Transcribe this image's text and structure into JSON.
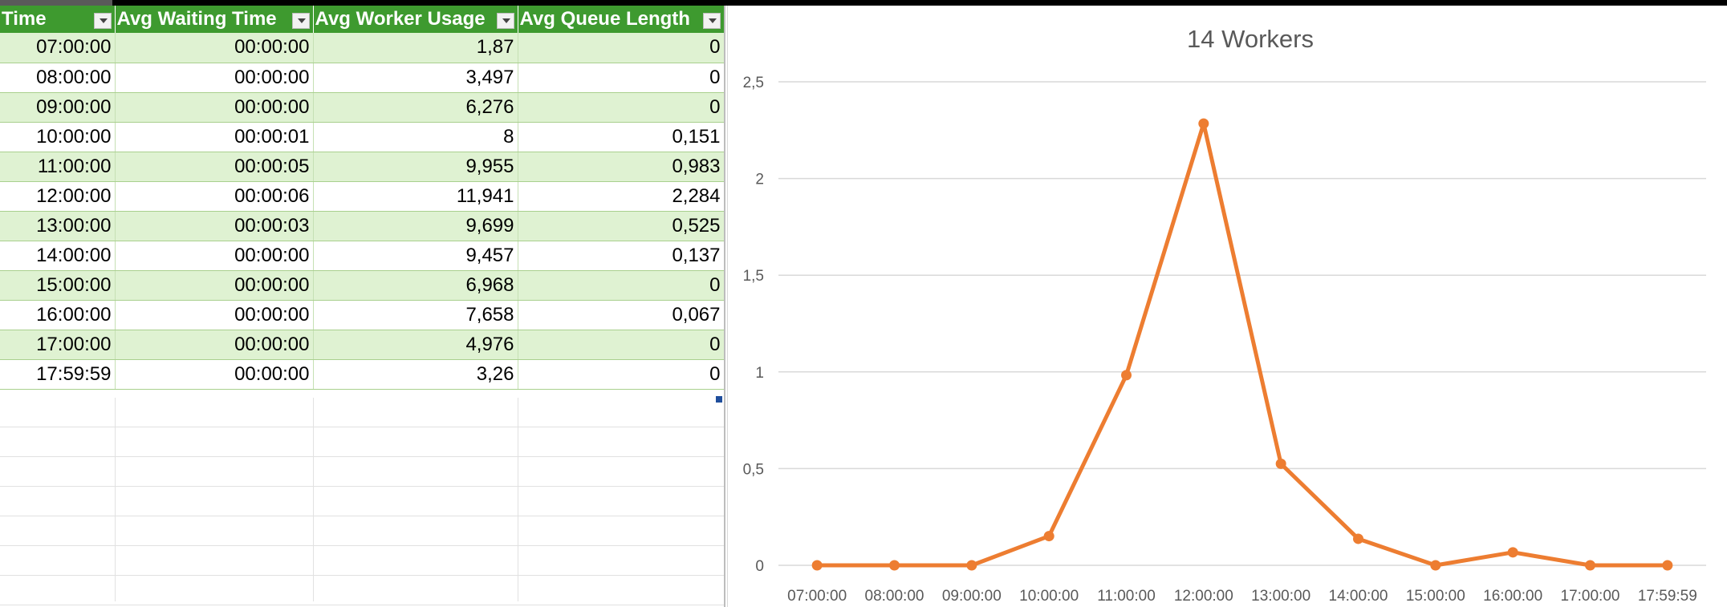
{
  "table": {
    "headers": [
      "Time",
      "Avg Waiting Time",
      "Avg Worker Usage",
      "Avg Queue Length"
    ],
    "rows": [
      [
        "07:00:00",
        "00:00:00",
        "1,87",
        "0"
      ],
      [
        "08:00:00",
        "00:00:00",
        "3,497",
        "0"
      ],
      [
        "09:00:00",
        "00:00:00",
        "6,276",
        "0"
      ],
      [
        "10:00:00",
        "00:00:01",
        "8",
        "0,151"
      ],
      [
        "11:00:00",
        "00:00:05",
        "9,955",
        "0,983"
      ],
      [
        "12:00:00",
        "00:00:06",
        "11,941",
        "2,284"
      ],
      [
        "13:00:00",
        "00:00:03",
        "9,699",
        "0,525"
      ],
      [
        "14:00:00",
        "00:00:00",
        "9,457",
        "0,137"
      ],
      [
        "15:00:00",
        "00:00:00",
        "6,968",
        "0"
      ],
      [
        "16:00:00",
        "00:00:00",
        "7,658",
        "0,067"
      ],
      [
        "17:00:00",
        "00:00:00",
        "4,976",
        "0"
      ],
      [
        "17:59:59",
        "00:00:00",
        "3,26",
        "0"
      ]
    ]
  },
  "chart_data": {
    "type": "line",
    "title": "14 Workers",
    "xlabel": "",
    "ylabel": "",
    "categories": [
      "07:00:00",
      "08:00:00",
      "09:00:00",
      "10:00:00",
      "11:00:00",
      "12:00:00",
      "13:00:00",
      "14:00:00",
      "15:00:00",
      "16:00:00",
      "17:00:00",
      "17:59:59"
    ],
    "series": [
      {
        "values": [
          0,
          0,
          0,
          0.151,
          0.983,
          2.284,
          0.525,
          0.137,
          0,
          0.067,
          0,
          0
        ],
        "color": "#ED7D31"
      }
    ],
    "ylim": [
      0,
      2.5
    ],
    "yticks": [
      0,
      0.5,
      1,
      1.5,
      2,
      2.5
    ],
    "ytick_labels": [
      "0",
      "0,5",
      "1",
      "1,5",
      "2",
      "2,5"
    ],
    "grid": true,
    "legend": "none"
  }
}
